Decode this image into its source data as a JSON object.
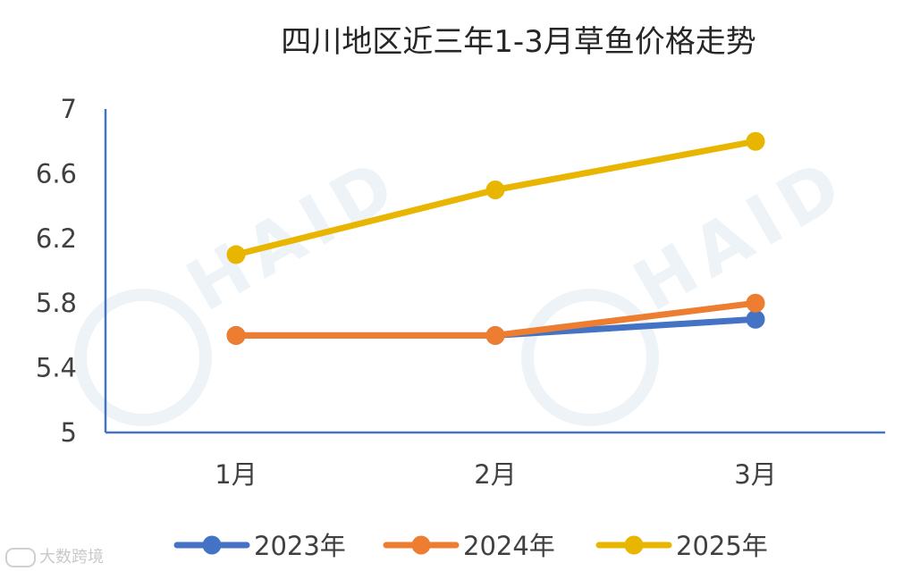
{
  "chart_data": {
    "type": "line",
    "title": "四川地区近三年1-3月草鱼价格走势",
    "categories": [
      "1月",
      "2月",
      "3月"
    ],
    "ylim": [
      5,
      7
    ],
    "yticks": [
      "5",
      "5.4",
      "5.8",
      "6.2",
      "6.6",
      "7"
    ],
    "ytick_values": [
      5,
      5.4,
      5.8,
      6.2,
      6.6,
      7
    ],
    "grid": false,
    "legend_position": "bottom",
    "series": [
      {
        "name": "2023年",
        "values": [
          5.6,
          5.6,
          5.7
        ],
        "color": "#4472C4"
      },
      {
        "name": "2024年",
        "values": [
          5.6,
          5.6,
          5.8
        ],
        "color": "#ED7D31"
      },
      {
        "name": "2025年",
        "values": [
          6.1,
          6.5,
          6.8
        ],
        "color": "#E8B600"
      }
    ]
  },
  "watermark": {
    "text": "HAID",
    "corner_text": "大数跨境"
  }
}
